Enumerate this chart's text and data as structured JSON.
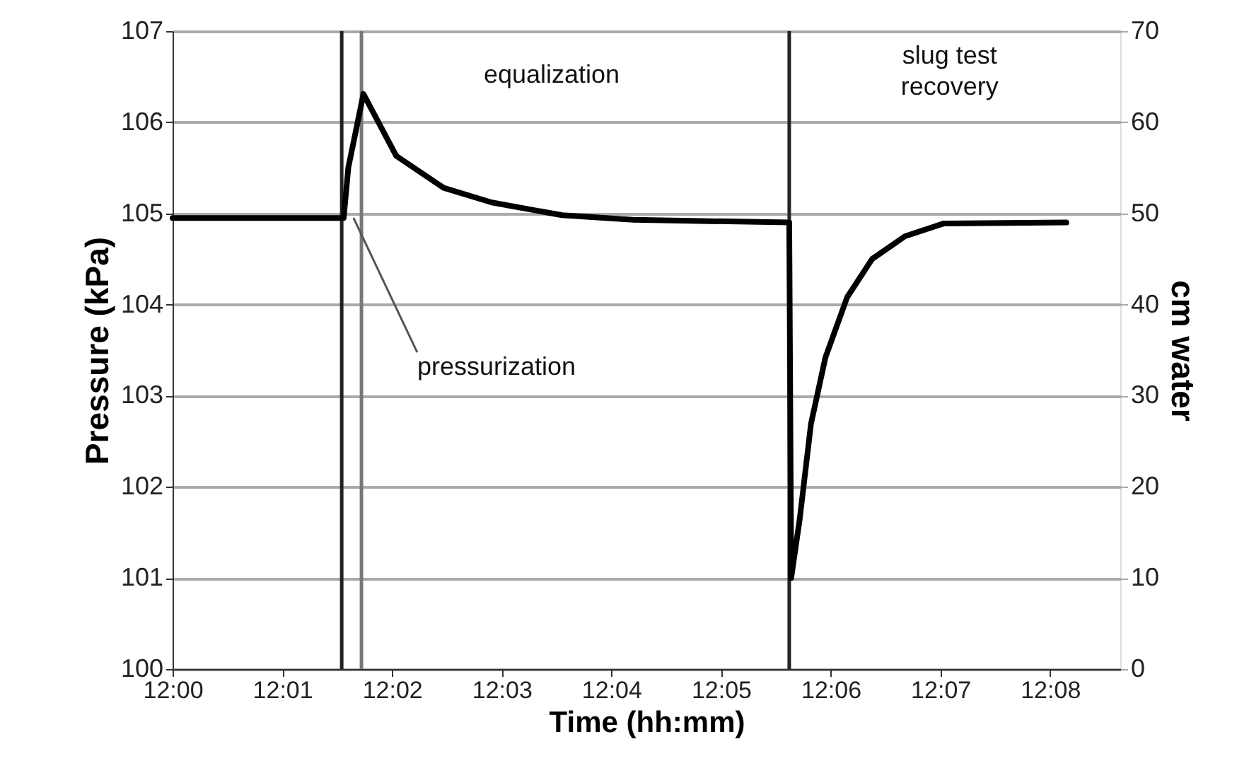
{
  "chart_data": {
    "type": "line",
    "xlabel": "Time (hh:mm)",
    "ylabel": "Pressure (kPa)",
    "y2label": "cm water",
    "x": [
      12.0,
      12.026,
      12.0267,
      12.029,
      12.034,
      12.0412,
      12.0485,
      12.0592,
      12.07,
      12.0937,
      12.094,
      12.0953,
      12.097,
      12.0992,
      12.1025,
      12.1063,
      12.1113,
      12.1172,
      12.1358
    ],
    "series": [
      {
        "color": "#000000",
        "values": [
          104.95,
          104.95,
          105.5,
          106.31,
          105.63,
          105.28,
          105.12,
          104.98,
          104.93,
          104.9,
          101.0,
          101.65,
          102.69,
          103.42,
          104.08,
          104.5,
          104.75,
          104.89,
          104.9
        ]
      }
    ],
    "xlim": [
      12.0,
      12.144
    ],
    "xticks": [
      {
        "value": 12.0,
        "label": "12:00"
      },
      {
        "value": 12.016667,
        "label": "12:01"
      },
      {
        "value": 12.033333,
        "label": "12:02"
      },
      {
        "value": 12.05,
        "label": "12:03"
      },
      {
        "value": 12.066667,
        "label": "12:04"
      },
      {
        "value": 12.083333,
        "label": "12:05"
      },
      {
        "value": 12.1,
        "label": "12:06"
      },
      {
        "value": 12.116667,
        "label": "12:07"
      },
      {
        "value": 12.133333,
        "label": "12:08"
      }
    ],
    "ylim": [
      100,
      107
    ],
    "yticks": [
      100,
      101,
      102,
      103,
      104,
      105,
      106,
      107
    ],
    "y2lim": [
      0,
      70
    ],
    "y2ticks": [
      0,
      10,
      20,
      30,
      40,
      50,
      60,
      70
    ],
    "ref_lines": [
      {
        "axis": "x",
        "value": 12.0257,
        "color": "#222222"
      },
      {
        "axis": "x",
        "value": 12.0287,
        "color": "#777777"
      },
      {
        "axis": "x",
        "value": 12.0937,
        "color": "#222222"
      }
    ],
    "annotations": [
      "equalization",
      "slug test\nrecovery",
      {
        "text": "pressurization",
        "x": 12.0275,
        "y": 104.95
      }
    ],
    "grid": "y",
    "legend": false,
    "marker": "none",
    "line_style": "solid"
  }
}
